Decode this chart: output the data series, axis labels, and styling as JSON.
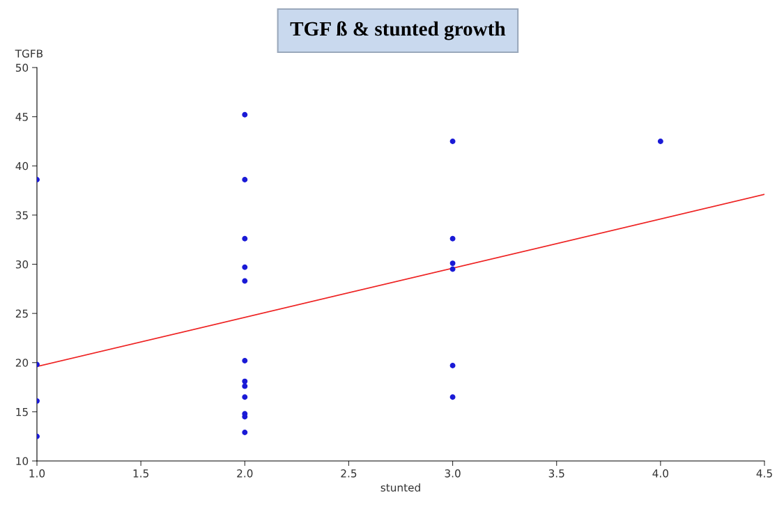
{
  "chart_data": {
    "type": "scatter",
    "title": "TGF ß & stunted growth",
    "xlabel": "stunted",
    "ylabel": "TGFB",
    "xlim": [
      1.0,
      4.5
    ],
    "xticks": [
      {
        "value": 1.0,
        "label": "1.0"
      },
      {
        "value": 1.5,
        "label": "1.5"
      },
      {
        "value": 2.0,
        "label": "2.0"
      },
      {
        "value": 2.5,
        "label": "2.5"
      },
      {
        "value": 3.0,
        "label": "3.0"
      },
      {
        "value": 3.5,
        "label": "3.5"
      },
      {
        "value": 4.0,
        "label": "4.0"
      },
      {
        "value": 4.5,
        "label": "4.5"
      }
    ],
    "ylim": [
      10,
      50
    ],
    "yticks": [
      10,
      15,
      20,
      25,
      30,
      35,
      40,
      45,
      50
    ],
    "grid": false,
    "legend": false,
    "series": [
      {
        "marker": "circle",
        "color": "#1a1ad6",
        "x": [
          1,
          1,
          1,
          1,
          2,
          2,
          2,
          2,
          2,
          2,
          2,
          2,
          2,
          2,
          2,
          2,
          3,
          3,
          3,
          3,
          3,
          3,
          4
        ],
        "values": [
          38.6,
          19.8,
          16.1,
          12.5,
          45.2,
          38.6,
          32.6,
          29.7,
          28.3,
          20.2,
          18.1,
          17.6,
          16.5,
          14.8,
          14.5,
          12.9,
          42.5,
          32.6,
          30.1,
          29.5,
          19.7,
          16.5,
          42.5
        ]
      },
      {
        "type": "line",
        "color": "#ee2222",
        "x": [
          1.0,
          4.5
        ],
        "values": [
          19.6,
          37.1
        ],
        "line_style": "solid"
      }
    ]
  }
}
